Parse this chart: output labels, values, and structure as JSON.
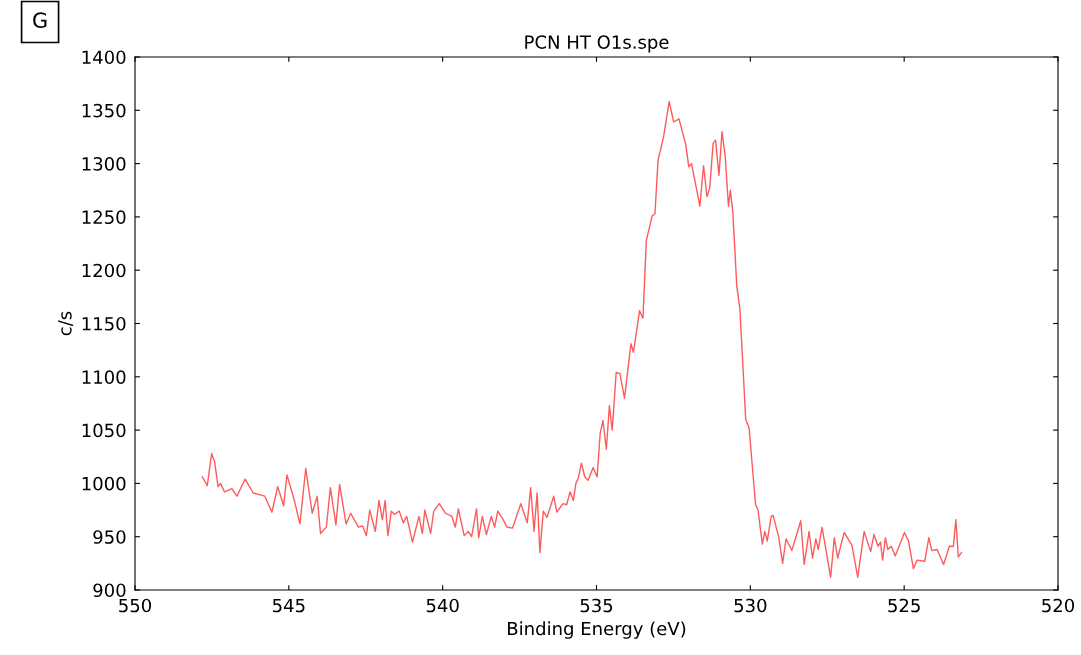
{
  "chart_data": {
    "type": "line",
    "title": "PCN HT O1s.spe",
    "xlabel": "Binding Energy (eV)",
    "ylabel": "c/s",
    "annotations": [
      "G"
    ],
    "xlim": [
      550,
      520
    ],
    "xticks": [
      550,
      545,
      540,
      535,
      530,
      525,
      520
    ],
    "ylim": [
      900,
      1400
    ],
    "yticks": [
      900,
      950,
      1000,
      1050,
      1100,
      1150,
      1200,
      1250,
      1300,
      1350,
      1400
    ],
    "grid": false,
    "legend": false,
    "marker": "none",
    "line_style": "solid",
    "series": [
      {
        "color": "#ff5a5a",
        "x": [
          547.81,
          547.65,
          547.51,
          547.41,
          547.3,
          547.22,
          547.09,
          546.85,
          546.69,
          546.42,
          546.16,
          545.78,
          545.55,
          545.36,
          545.17,
          545.06,
          544.82,
          544.64,
          544.45,
          544.24,
          544.08,
          543.97,
          543.78,
          543.65,
          543.47,
          543.35,
          543.14,
          542.99,
          542.74,
          542.6,
          542.48,
          542.37,
          542.19,
          542.07,
          541.96,
          541.87,
          541.78,
          541.67,
          541.57,
          541.41,
          541.28,
          541.17,
          540.98,
          540.77,
          540.66,
          540.58,
          540.39,
          540.29,
          540.11,
          539.91,
          539.7,
          539.59,
          539.49,
          539.3,
          539.17,
          539.06,
          538.9,
          538.83,
          538.71,
          538.58,
          538.42,
          538.31,
          538.21,
          538.05,
          537.91,
          537.73,
          537.46,
          537.25,
          537.14,
          537.03,
          536.93,
          536.84,
          536.73,
          536.61,
          536.39,
          536.29,
          536.09,
          535.97,
          535.86,
          535.75,
          535.67,
          535.59,
          535.49,
          535.38,
          535.27,
          535.11,
          534.98,
          534.88,
          534.79,
          534.68,
          534.58,
          534.49,
          534.36,
          534.24,
          534.09,
          533.88,
          533.8,
          533.6,
          533.49,
          533.38,
          533.19,
          533.1,
          533.0,
          532.82,
          532.64,
          532.49,
          532.32,
          532.1,
          532.0,
          531.91,
          531.64,
          531.52,
          531.41,
          531.32,
          531.21,
          531.13,
          531.02,
          530.92,
          530.82,
          530.71,
          530.65,
          530.57,
          530.44,
          530.34,
          530.15,
          530.04,
          529.83,
          529.75,
          529.61,
          529.53,
          529.45,
          529.32,
          529.26,
          529.08,
          528.95,
          528.84,
          528.65,
          528.36,
          528.25,
          528.09,
          527.98,
          527.87,
          527.79,
          527.67,
          527.39,
          527.27,
          527.16,
          526.95,
          526.7,
          526.51,
          526.3,
          526.09,
          525.98,
          525.85,
          525.77,
          525.7,
          525.61,
          525.53,
          525.42,
          525.29,
          524.99,
          524.86,
          524.7,
          524.58,
          524.33,
          524.2,
          524.1,
          523.93,
          523.72,
          523.53,
          523.4,
          523.32,
          523.24,
          523.14
        ],
        "values": [
          1006,
          998,
          1028,
          1020,
          997,
          1000,
          992,
          995,
          988,
          1004,
          991,
          988,
          973,
          997,
          979,
          1008,
          984,
          962,
          1014,
          972,
          988,
          953,
          959,
          996,
          961,
          999,
          962,
          972,
          959,
          960,
          951,
          975,
          955,
          984,
          966,
          984,
          951,
          974,
          971,
          974,
          963,
          969,
          945,
          969,
          953,
          975,
          953,
          974,
          981,
          972,
          969,
          959,
          976,
          951,
          955,
          950,
          976,
          949,
          969,
          952,
          969,
          959,
          974,
          967,
          959,
          958,
          981,
          963,
          996,
          955,
          991,
          935,
          974,
          968,
          988,
          973,
          981,
          980,
          992,
          984,
          1000,
          1005,
          1019,
          1006,
          1003,
          1015,
          1006,
          1047,
          1059,
          1032,
          1073,
          1050,
          1104,
          1103,
          1080,
          1131,
          1123,
          1162,
          1155,
          1228,
          1251,
          1253,
          1303,
          1325,
          1358,
          1339,
          1342,
          1318,
          1297,
          1300,
          1260,
          1298,
          1269,
          1277,
          1319,
          1322,
          1289,
          1330,
          1308,
          1260,
          1275,
          1255,
          1185,
          1164,
          1060,
          1052,
          980,
          975,
          943,
          955,
          946,
          969,
          970,
          950,
          925,
          948,
          937,
          965,
          924,
          955,
          930,
          948,
          938,
          959,
          912,
          949,
          930,
          954,
          942,
          912,
          955,
          936,
          952,
          941,
          945,
          928,
          949,
          938,
          941,
          932,
          954,
          946,
          920,
          928,
          927,
          949,
          937,
          938,
          924,
          941,
          941,
          966,
          931,
          935
        ]
      }
    ]
  }
}
